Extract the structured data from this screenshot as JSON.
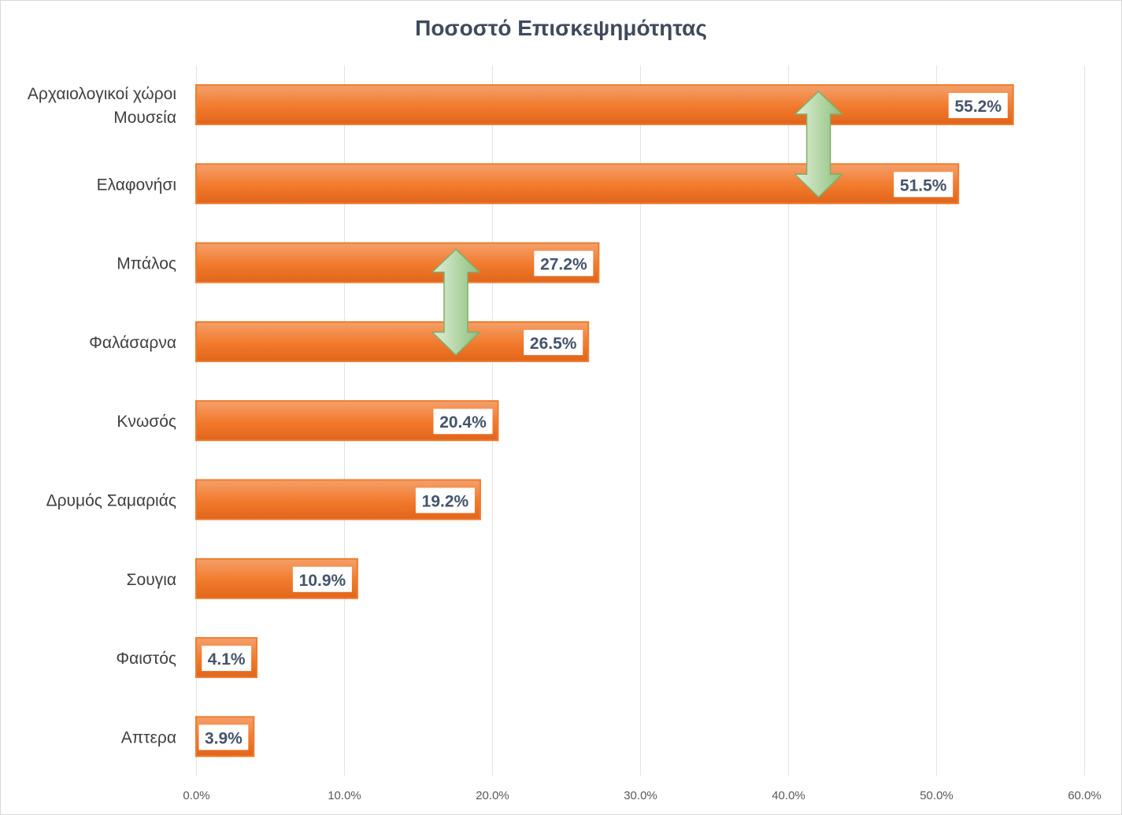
{
  "chart_data": {
    "type": "bar",
    "orientation": "horizontal",
    "title": "Ποσοστό Επισκεψημότητας",
    "categories": [
      [
        "Αρχαιολογικοί χώροι",
        "Μουσεία"
      ],
      "Ελαφονήσι",
      "Μπάλος",
      "Φαλάσαρνα",
      "Κνωσός",
      "Δρυμός Σαμαριάς",
      "Σουγια",
      "Φαιστός",
      "Απτερα"
    ],
    "values": [
      55.2,
      51.5,
      27.2,
      26.5,
      20.4,
      19.2,
      10.9,
      4.1,
      3.9
    ],
    "data_labels": [
      "55.2%",
      "51.5%",
      "27.2%",
      "26.5%",
      "20.4%",
      "19.2%",
      "10.9%",
      "4.1%",
      "3.9%"
    ],
    "xlim": [
      0,
      60
    ],
    "x_ticks": [
      0,
      10,
      20,
      30,
      40,
      50,
      60
    ],
    "x_tick_labels": [
      "0.0%",
      "10.0%",
      "20.0%",
      "30.0%",
      "40.0%",
      "50.0%",
      "60.0%"
    ],
    "grid": true,
    "xlabel": "",
    "ylabel": "",
    "annotations": [
      {
        "type": "double-arrow",
        "between": [
          "Αρχαιολογικοί χώροι Μουσεία",
          "Ελαφονήσι"
        ],
        "x": 42
      },
      {
        "type": "double-arrow",
        "between": [
          "Μπάλος",
          "Φαλάσαρνα"
        ],
        "x": 17.5
      }
    ],
    "colors": {
      "bar_top": "#f4a06a",
      "bar_mid": "#f27a2c",
      "bar_bottom": "#e0651b",
      "bar_border": "#ed7d31",
      "arrow_light": "#e2efd9",
      "arrow_dark": "#8dc07b",
      "arrow_stroke": "#7fae6c",
      "grid": "#e3e3e3",
      "title": "#3f4a5c",
      "data_label": "#44546a"
    }
  }
}
